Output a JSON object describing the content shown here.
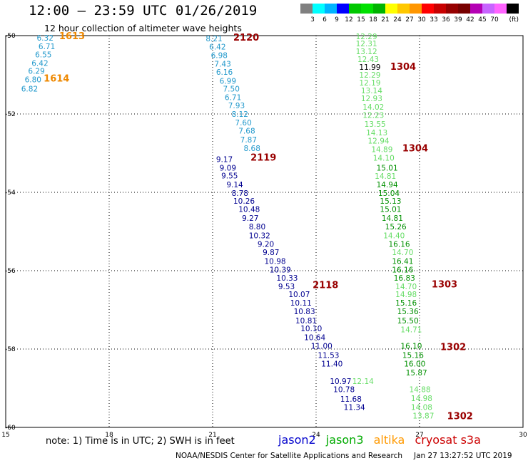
{
  "header": {
    "title": "12:00 – 23:59 UTC 01/26/2019",
    "subtitle": "12 hour collection of altimeter wave heights"
  },
  "colorbar": {
    "labels": [
      "3",
      "6",
      "9",
      "12",
      "15",
      "18",
      "21",
      "24",
      "27",
      "30",
      "33",
      "36",
      "39",
      "42",
      "45",
      "70"
    ],
    "unit": "(ft)",
    "colors": [
      "#808080",
      "#00ffff",
      "#00b4ff",
      "#0000ff",
      "#00c800",
      "#00e100",
      "#00b400",
      "#ffff00",
      "#ffc800",
      "#ff9600",
      "#ff0000",
      "#c80000",
      "#960000",
      "#780000",
      "#b400b4",
      "#c864ff",
      "#ff64ff",
      "#000000"
    ]
  },
  "axes": {
    "x_ticks": [
      "15",
      "18",
      "21",
      "24",
      "27",
      "30"
    ],
    "y_ticks": [
      "-50",
      "-52",
      "-54",
      "-56",
      "-58",
      "-60"
    ]
  },
  "chart_data": {
    "type": "scatter",
    "xlim": [
      15,
      30
    ],
    "ylim": [
      -60,
      -50
    ],
    "grid": true,
    "series": [
      {
        "name": "jason2",
        "color": "#000090",
        "points": [
          {
            "x": 21.1,
            "y": -53.15,
            "v": "9.17"
          },
          {
            "x": 21.2,
            "y": -53.37,
            "v": "9.09"
          },
          {
            "x": 21.25,
            "y": -53.57,
            "v": "9.55"
          },
          {
            "x": 21.4,
            "y": -53.8,
            "v": "9.14"
          },
          {
            "x": 21.55,
            "y": -54.02,
            "v": "8.78"
          },
          {
            "x": 21.6,
            "y": -54.22,
            "v": "10.26"
          },
          {
            "x": 21.75,
            "y": -54.43,
            "v": "10.48"
          },
          {
            "x": 21.85,
            "y": -54.65,
            "v": "9.27"
          },
          {
            "x": 22.05,
            "y": -54.87,
            "v": "8.80"
          },
          {
            "x": 22.05,
            "y": -55.1,
            "v": "10.32"
          },
          {
            "x": 22.3,
            "y": -55.32,
            "v": "9.20"
          },
          {
            "x": 22.45,
            "y": -55.53,
            "v": "9.87"
          },
          {
            "x": 22.5,
            "y": -55.75,
            "v": "10.98"
          },
          {
            "x": 22.65,
            "y": -55.97,
            "v": "10.39"
          },
          {
            "x": 22.85,
            "y": -56.18,
            "v": "10.33"
          },
          {
            "x": 22.9,
            "y": -56.4,
            "v": "9.53"
          },
          {
            "x": 23.2,
            "y": -56.6,
            "v": "10.07"
          },
          {
            "x": 23.25,
            "y": -56.82,
            "v": "10.11"
          },
          {
            "x": 23.35,
            "y": -57.04,
            "v": "10.83"
          },
          {
            "x": 23.4,
            "y": -57.27,
            "v": "10.81"
          },
          {
            "x": 23.55,
            "y": -57.47,
            "v": "10.10"
          },
          {
            "x": 23.65,
            "y": -57.7,
            "v": "10.64"
          },
          {
            "x": 23.85,
            "y": -57.92,
            "v": "11.00"
          },
          {
            "x": 24.05,
            "y": -58.15,
            "v": "11.53"
          },
          {
            "x": 24.15,
            "y": -58.37,
            "v": "11.40"
          },
          {
            "x": 24.4,
            "y": -58.82,
            "v": "10.97"
          },
          {
            "x": 24.5,
            "y": -59.03,
            "v": "10.78"
          },
          {
            "x": 24.7,
            "y": -59.27,
            "v": "11.68"
          },
          {
            "x": 24.8,
            "y": -59.48,
            "v": "11.34"
          }
        ]
      },
      {
        "name": "jason2-light",
        "color": "#2299cc",
        "points": [
          {
            "x": 20.8,
            "y": -50.07,
            "v": "8.21"
          },
          {
            "x": 20.9,
            "y": -50.28,
            "v": "6.42"
          },
          {
            "x": 20.95,
            "y": -50.5,
            "v": "6.98"
          },
          {
            "x": 21.05,
            "y": -50.72,
            "v": "7.43"
          },
          {
            "x": 21.1,
            "y": -50.93,
            "v": "6.16"
          },
          {
            "x": 21.2,
            "y": -51.15,
            "v": "6.99"
          },
          {
            "x": 21.3,
            "y": -51.35,
            "v": "7.50"
          },
          {
            "x": 21.35,
            "y": -51.57,
            "v": "6.71"
          },
          {
            "x": 21.45,
            "y": -51.78,
            "v": "7.93"
          },
          {
            "x": 21.55,
            "y": -52.0,
            "v": "8.12"
          },
          {
            "x": 21.65,
            "y": -52.22,
            "v": "7.60"
          },
          {
            "x": 21.75,
            "y": -52.43,
            "v": "7.68"
          },
          {
            "x": 21.8,
            "y": -52.65,
            "v": "7.87"
          },
          {
            "x": 21.9,
            "y": -52.87,
            "v": "8.68"
          },
          {
            "x": 15.9,
            "y": -50.05,
            "v": "6.32"
          },
          {
            "x": 15.95,
            "y": -50.27,
            "v": "6.71"
          },
          {
            "x": 15.85,
            "y": -50.48,
            "v": "6.55"
          },
          {
            "x": 15.75,
            "y": -50.7,
            "v": "6.42"
          },
          {
            "x": 15.65,
            "y": -50.9,
            "v": "6.29"
          },
          {
            "x": 15.55,
            "y": -51.12,
            "v": "6.80"
          },
          {
            "x": 15.45,
            "y": -51.35,
            "v": "6.82"
          }
        ]
      },
      {
        "name": "jason3",
        "color": "#009000",
        "points": [
          {
            "x": 25.75,
            "y": -53.37,
            "v": "15.01"
          },
          {
            "x": 25.75,
            "y": -53.8,
            "v": "14.94"
          },
          {
            "x": 25.8,
            "y": -54.02,
            "v": "15.04"
          },
          {
            "x": 25.85,
            "y": -54.22,
            "v": "15.13"
          },
          {
            "x": 25.85,
            "y": -54.43,
            "v": "15.01"
          },
          {
            "x": 25.9,
            "y": -54.65,
            "v": "14.81"
          },
          {
            "x": 26.0,
            "y": -54.87,
            "v": "15.26"
          },
          {
            "x": 26.1,
            "y": -55.32,
            "v": "16.16"
          },
          {
            "x": 26.2,
            "y": -55.75,
            "v": "16.41"
          },
          {
            "x": 26.2,
            "y": -55.97,
            "v": "16.16"
          },
          {
            "x": 26.25,
            "y": -56.18,
            "v": "16.83"
          },
          {
            "x": 26.3,
            "y": -56.82,
            "v": "15.16"
          },
          {
            "x": 26.35,
            "y": -57.04,
            "v": "15.36"
          },
          {
            "x": 26.35,
            "y": -57.27,
            "v": "15.50"
          },
          {
            "x": 26.45,
            "y": -57.92,
            "v": "16.10"
          },
          {
            "x": 26.5,
            "y": -58.15,
            "v": "15.16"
          },
          {
            "x": 26.55,
            "y": -58.37,
            "v": "16.00"
          },
          {
            "x": 26.6,
            "y": -58.6,
            "v": "15.87"
          }
        ]
      },
      {
        "name": "jason3-light",
        "color": "#66dd66",
        "points": [
          {
            "x": 25.15,
            "y": -50.02,
            "v": "12.29"
          },
          {
            "x": 25.15,
            "y": -50.2,
            "v": "12.31"
          },
          {
            "x": 25.15,
            "y": -50.4,
            "v": "13.12"
          },
          {
            "x": 25.2,
            "y": -50.6,
            "v": "12.43"
          },
          {
            "x": 25.25,
            "y": -51.0,
            "v": "12.29"
          },
          {
            "x": 25.25,
            "y": -51.2,
            "v": "12.19"
          },
          {
            "x": 25.3,
            "y": -51.4,
            "v": "13.14"
          },
          {
            "x": 25.3,
            "y": -51.6,
            "v": "12.93"
          },
          {
            "x": 25.35,
            "y": -51.82,
            "v": "14.02"
          },
          {
            "x": 25.35,
            "y": -52.03,
            "v": "12.23"
          },
          {
            "x": 25.4,
            "y": -52.25,
            "v": "13.55"
          },
          {
            "x": 25.45,
            "y": -52.47,
            "v": "14.13"
          },
          {
            "x": 25.5,
            "y": -52.68,
            "v": "12.94"
          },
          {
            "x": 25.6,
            "y": -52.9,
            "v": "14.89"
          },
          {
            "x": 25.65,
            "y": -53.12,
            "v": "14.10"
          },
          {
            "x": 25.7,
            "y": -53.58,
            "v": "14.81"
          },
          {
            "x": 25.95,
            "y": -55.1,
            "v": "14.40"
          },
          {
            "x": 26.2,
            "y": -55.53,
            "v": "14.70"
          },
          {
            "x": 26.3,
            "y": -56.4,
            "v": "14.70"
          },
          {
            "x": 26.3,
            "y": -56.6,
            "v": "14.98"
          },
          {
            "x": 26.45,
            "y": -57.5,
            "v": "14.71"
          },
          {
            "x": 25.05,
            "y": -58.82,
            "v": "12.14"
          },
          {
            "x": 26.7,
            "y": -59.03,
            "v": "14.88"
          },
          {
            "x": 26.75,
            "y": -59.25,
            "v": "14.98"
          },
          {
            "x": 26.75,
            "y": -59.48,
            "v": "14.08"
          },
          {
            "x": 26.8,
            "y": -59.7,
            "v": "13.87"
          }
        ]
      },
      {
        "name": "jason3-dark",
        "color": "#000000",
        "points": [
          {
            "x": 25.25,
            "y": -50.8,
            "v": "11.99"
          }
        ]
      },
      {
        "name": "pass-labels",
        "color": "#990000",
        "points": [
          {
            "x": 21.6,
            "y": -50.05,
            "v": "2120"
          },
          {
            "x": 22.1,
            "y": -53.12,
            "v": "2119"
          },
          {
            "x": 23.9,
            "y": -56.37,
            "v": "2118"
          },
          {
            "x": 26.15,
            "y": -50.8,
            "v": "1304"
          },
          {
            "x": 26.5,
            "y": -52.88,
            "v": "1304"
          },
          {
            "x": 27.35,
            "y": -56.35,
            "v": "1303"
          },
          {
            "x": 27.6,
            "y": -57.95,
            "v": "1302"
          },
          {
            "x": 27.8,
            "y": -59.72,
            "v": "1302"
          }
        ]
      },
      {
        "name": "altika",
        "color": "#ee8800",
        "points": [
          {
            "x": 16.55,
            "y": -50.02,
            "v": "1613"
          },
          {
            "x": 16.1,
            "y": -51.1,
            "v": "1614"
          }
        ]
      }
    ]
  },
  "footer": {
    "note": "note:  1) Time is in UTC;  2) SWH is in feet",
    "legend": [
      {
        "label": "jason2",
        "color": "#0000cc"
      },
      {
        "label": "jason3",
        "color": "#00aa00"
      },
      {
        "label": "altika",
        "color": "#ff9900"
      },
      {
        "label": "cryosat s3a",
        "color": "#cc0000"
      }
    ],
    "credit": "NOAA/NESDIS Center for Satellite Applications and Research",
    "timestamp": "Jan 27 13:27:52 UTC 2019"
  }
}
